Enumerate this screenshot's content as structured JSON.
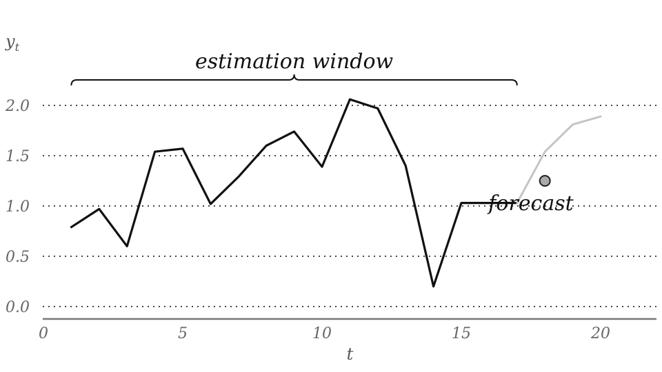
{
  "chart_data": {
    "type": "line",
    "title": "",
    "xlabel": "t",
    "ylabel": "y_t",
    "xlim": [
      0,
      22
    ],
    "ylim": [
      0,
      2
    ],
    "x_ticks": [
      0,
      5,
      10,
      15,
      20
    ],
    "x_tick_labels": [
      "0",
      "5",
      "10",
      "15",
      "20"
    ],
    "y_ticks": [
      0,
      0.5,
      1,
      1.5,
      2
    ],
    "y_tick_labels": [
      "0.0",
      "0.5",
      "1.0",
      "1.5",
      "2.0"
    ],
    "grid": "horizontal dotted",
    "legend": "none",
    "series": [
      {
        "role": "observed",
        "color": "#111111",
        "x": [
          1,
          2,
          3,
          4,
          5,
          6,
          7,
          8,
          9,
          10,
          11,
          12,
          13,
          14,
          15,
          16,
          17
        ],
        "y": [
          0.79,
          0.97,
          0.6,
          1.54,
          1.57,
          1.02,
          1.29,
          1.6,
          1.74,
          1.39,
          2.06,
          1.97,
          1.4,
          0.2,
          1.03,
          1.03,
          1.03
        ]
      },
      {
        "role": "forecast",
        "color": "#c4c4c4",
        "x": [
          17,
          18,
          19,
          20
        ],
        "y": [
          1.03,
          1.54,
          1.81,
          1.89
        ]
      }
    ],
    "points": [
      {
        "x": 18,
        "y": 1.25,
        "color": "#aaaaaa"
      }
    ],
    "annotations": [
      {
        "id": "estimation-window",
        "text": "estimation window",
        "x_start": 1,
        "x_end": 17
      },
      {
        "id": "forecast",
        "text": "forecast",
        "x": 17.5,
        "y": 1.0
      }
    ]
  }
}
